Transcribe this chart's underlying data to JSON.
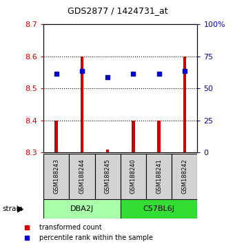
{
  "title": "GDS2877 / 1424731_at",
  "samples": [
    "GSM188243",
    "GSM188244",
    "GSM188245",
    "GSM188240",
    "GSM188241",
    "GSM188242"
  ],
  "red_values": [
    8.4,
    8.6,
    8.31,
    8.4,
    8.4,
    8.6
  ],
  "blue_values": [
    8.545,
    8.555,
    8.535,
    8.545,
    8.545,
    8.555
  ],
  "bar_bottom": 8.3,
  "ylim_left": [
    8.3,
    8.7
  ],
  "ylim_right": [
    0,
    100
  ],
  "yticks_left": [
    8.3,
    8.4,
    8.5,
    8.6,
    8.7
  ],
  "yticks_right": [
    0,
    25,
    50,
    75,
    100
  ],
  "ytick_labels_right": [
    "0",
    "25",
    "50",
    "75",
    "100%"
  ],
  "grid_values": [
    8.4,
    8.5,
    8.6
  ],
  "red_color": "#CC0000",
  "blue_color": "#0000CC",
  "bar_width": 0.12,
  "blue_marker_size": 5,
  "dba2j_color": "#AAFFAA",
  "c57bl6j_color": "#33DD33",
  "sample_box_color": "#D3D3D3"
}
